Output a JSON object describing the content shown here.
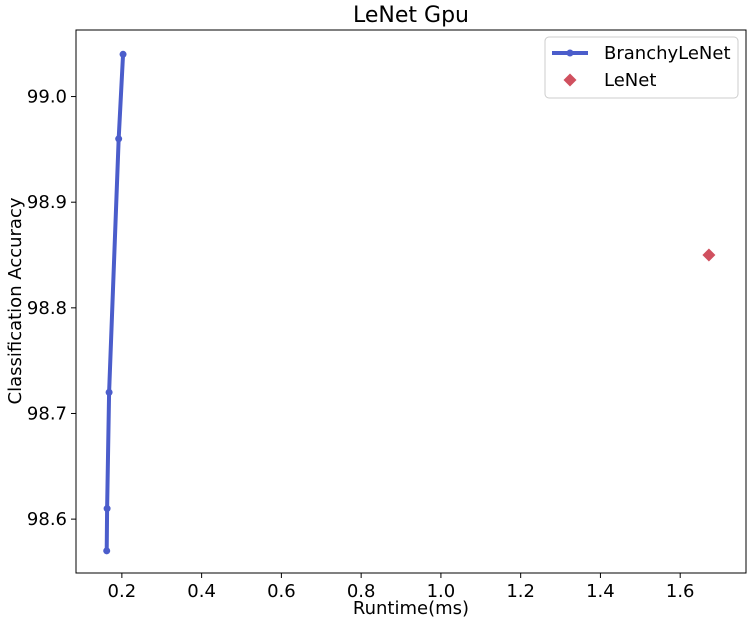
{
  "chart_data": {
    "type": "line",
    "title": "LeNet Gpu",
    "xlabel": "Runtime(ms)",
    "ylabel": "Classification Accuracy",
    "xlim": [
      0.085,
      1.765
    ],
    "ylim": [
      98.549,
      99.063
    ],
    "xticks": [
      0.2,
      0.4,
      0.6,
      0.8,
      1.0,
      1.2,
      1.4,
      1.6
    ],
    "xtick_labels": [
      "0.2",
      "0.4",
      "0.6",
      "0.8",
      "1.0",
      "1.2",
      "1.4",
      "1.6"
    ],
    "yticks": [
      98.6,
      98.7,
      98.8,
      98.9,
      99.0
    ],
    "ytick_labels": [
      "98.6",
      "98.7",
      "98.8",
      "98.9",
      "99.0"
    ],
    "grid": false,
    "legend_position": "top-right",
    "series": [
      {
        "name": "BranchyLeNet",
        "style": "line-with-circle-markers",
        "color": "#4b5dcb",
        "x": [
          0.162,
          0.163,
          0.168,
          0.192,
          0.203
        ],
        "y": [
          98.57,
          98.61,
          98.72,
          98.96,
          99.04
        ]
      },
      {
        "name": "LeNet",
        "style": "diamond-marker",
        "color": "#d0505f",
        "x": [
          1.672
        ],
        "y": [
          98.85
        ]
      }
    ]
  }
}
